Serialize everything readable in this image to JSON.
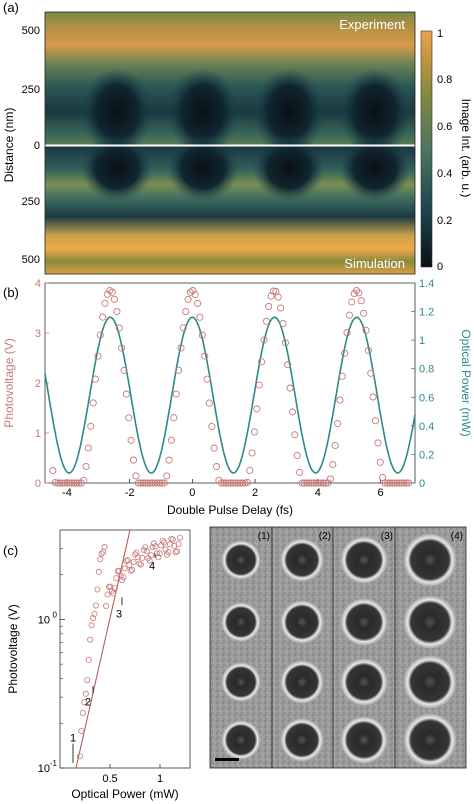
{
  "panels": {
    "a": "(a)",
    "b": "(b)",
    "c": "(c)"
  },
  "panel_a": {
    "top_label": "Experiment",
    "bottom_label": "Simulation",
    "ylabel": "Distance (nm)",
    "yticks_top": [
      "500",
      "250",
      "0"
    ],
    "yticks_bottom": [
      "250",
      "500"
    ],
    "colorbar_label": "Image Int. (arb. u.)",
    "colorbar_ticks": [
      "0",
      "0.2",
      "0.4",
      "0.6",
      "0.8",
      "1"
    ],
    "colors": {
      "low": "#0a1015",
      "mid_low": "#1f4650",
      "mid": "#4d7560",
      "mid_high": "#8a8a3c",
      "high": "#f0a24a"
    }
  },
  "chart_data": [
    {
      "type": "scatter+line",
      "xlabel": "Double Pulse Delay (fs)",
      "ylabel": "Photovoltage (V)",
      "ylabel_right": "Optical Power (mW)",
      "xlim": [
        -4.7,
        7.1
      ],
      "ylim": [
        0,
        4
      ],
      "ylim_right": [
        0,
        1.4
      ],
      "xticks": [
        -4,
        -2,
        0,
        2,
        4,
        6
      ],
      "yticks": [
        0,
        1,
        2,
        3,
        4
      ],
      "yticks_right": [
        0,
        0.2,
        0.4,
        0.6,
        0.8,
        1,
        1.2,
        1.4
      ],
      "series": [
        {
          "kind": "markers",
          "color": "#c97878",
          "period": 2.62,
          "peak_x": -2.62,
          "min": 0.0,
          "max": 3.85
        },
        {
          "kind": "line",
          "color": "#2d8a8a",
          "period": 2.62,
          "peak_x": -2.62,
          "min": 0.07,
          "max": 1.16
        }
      ]
    },
    {
      "type": "scatter",
      "xlabel": "Optical Power (mW)",
      "ylabel": "Photovoltage (V)",
      "xlim": [
        0,
        1.3
      ],
      "ylim": [
        0.1,
        4
      ],
      "yscale": "log",
      "xticks": [
        0.5,
        1
      ],
      "ytick_labels": [
        "10^-1",
        "10^0"
      ],
      "annotations": [
        "1",
        "2",
        "3",
        "4"
      ],
      "marker_color": "#c97878",
      "fit_color": "#b05050"
    }
  ],
  "panel_c_images": {
    "labels": [
      "(1)",
      "(2)",
      "(3)",
      "(4)"
    ]
  }
}
